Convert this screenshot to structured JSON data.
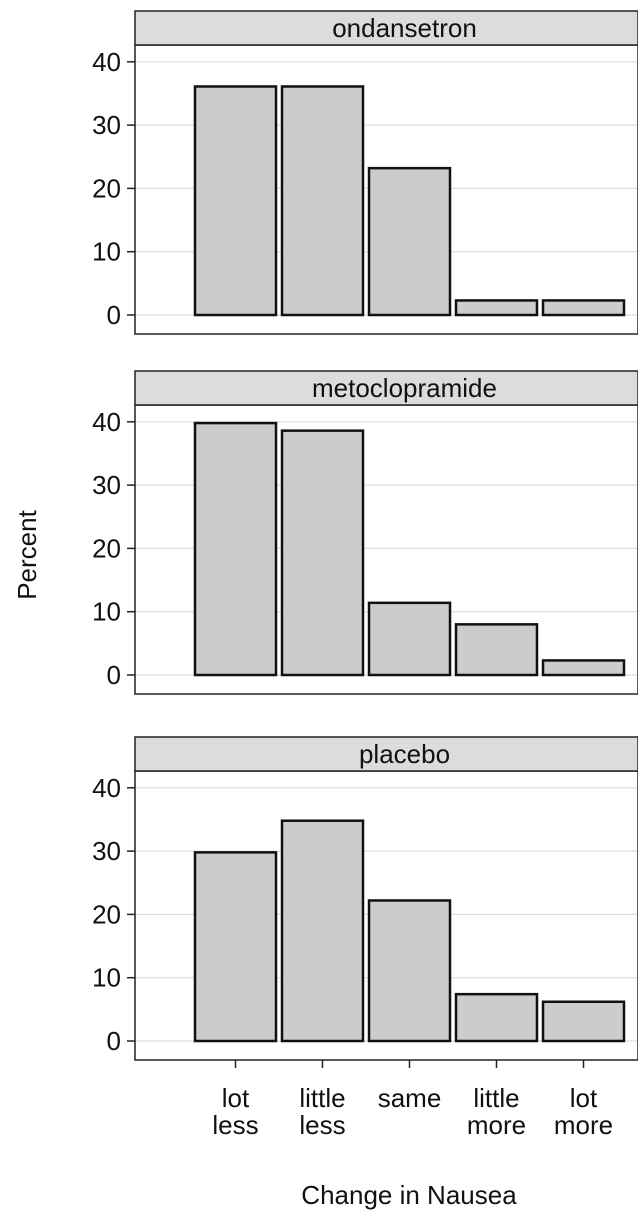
{
  "chart_data": {
    "type": "bar",
    "layout": "faceted-vertical",
    "xlabel": "Change in Nausea",
    "ylabel": "Percent",
    "ylim": [
      0,
      44
    ],
    "yticks": [
      0,
      10,
      20,
      30,
      40
    ],
    "grid": true,
    "bar_color": "#cccccc",
    "categories": [
      [
        "lot",
        "less"
      ],
      [
        "little",
        "less"
      ],
      [
        "same"
      ],
      [
        "little",
        "more"
      ],
      [
        "lot",
        "more"
      ]
    ],
    "panels": [
      {
        "name": "ondansetron",
        "values": [
          36.1,
          36.1,
          23.2,
          2.3,
          2.3
        ]
      },
      {
        "name": "metoclopramide",
        "values": [
          39.8,
          38.6,
          11.4,
          8.0,
          2.3
        ]
      },
      {
        "name": "placebo",
        "values": [
          29.8,
          34.8,
          22.2,
          7.4,
          6.2
        ]
      }
    ]
  }
}
